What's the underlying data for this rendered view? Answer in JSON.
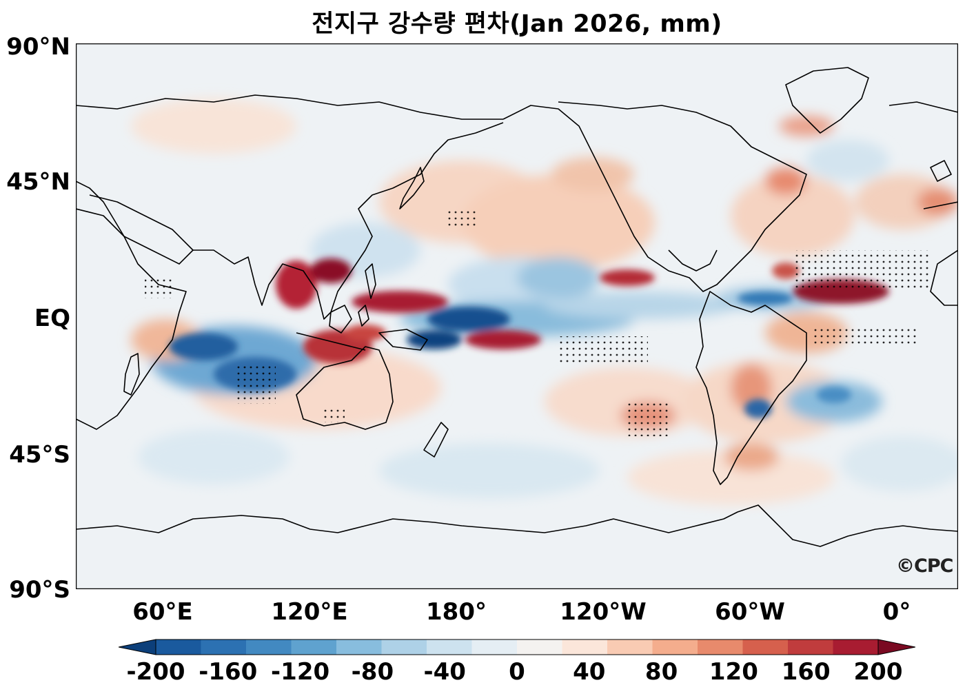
{
  "title": "전지구 강수량 편차(Jan 2026, mm)",
  "credit": "©CPC",
  "latitude_labels": [
    "90°N",
    "45°N",
    "EQ",
    "45°S",
    "90°S"
  ],
  "longitude_labels": [
    "60°E",
    "120°E",
    "180°",
    "120°W",
    "60°W",
    "0°"
  ],
  "colorbar": {
    "tick_labels": [
      "-200",
      "-160",
      "-120",
      "-80",
      "-40",
      "0",
      "40",
      "80",
      "120",
      "160",
      "200"
    ],
    "colors": [
      "#0c3f7a",
      "#1a5a9e",
      "#2c71b2",
      "#4289c1",
      "#5fa2cf",
      "#88bdde",
      "#aed1e7",
      "#cde2ef",
      "#e5eef4",
      "#f4f2f0",
      "#fbe6da",
      "#f9cbb3",
      "#f4ad8d",
      "#e88a6c",
      "#d6604d",
      "#c03c3d",
      "#a81c31",
      "#7a0a22"
    ],
    "extend": "both"
  },
  "map": {
    "projection": "equirectangular",
    "central_longitude": "180°",
    "variable": "precipitation anomaly",
    "units": "mm",
    "colormap": "RdBu_r"
  }
}
